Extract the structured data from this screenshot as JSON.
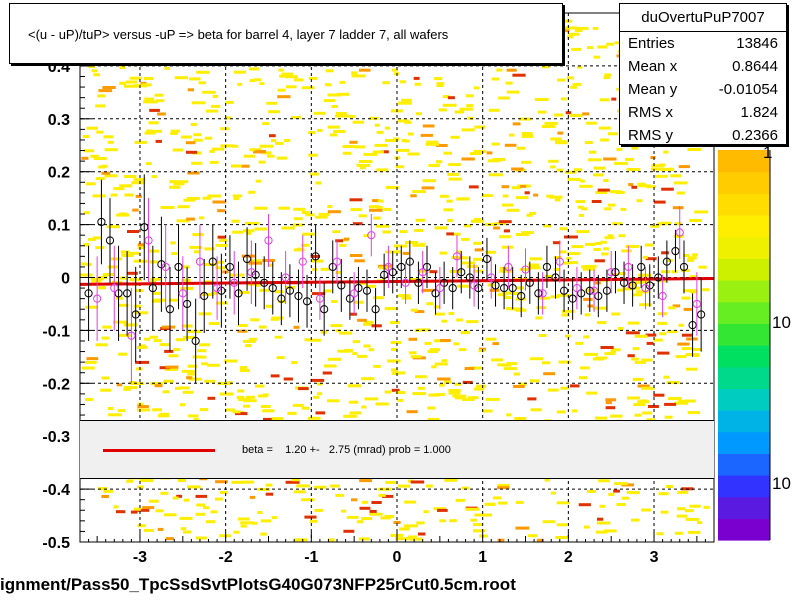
{
  "title": "<(u - uP)/tuP> versus  -uP => beta for barrel 4, layer 7 ladder 7, all wafers",
  "stats": {
    "name": "duOvertuPuP7007",
    "rows": [
      {
        "key": "Entries",
        "value": "13846"
      },
      {
        "key": "Mean x",
        "value": "0.8644"
      },
      {
        "key": "Mean y",
        "value": "-0.01054"
      },
      {
        "key": "RMS x",
        "value": "1.824"
      },
      {
        "key": "RMS y",
        "value": "0.2366"
      }
    ]
  },
  "legend": {
    "text": "beta =    1.20 +-   2.75 (mrad) prob = 1.000"
  },
  "footer": "ignment/Pass50_TpcSsdSvtPlotsG40G073NFP25rCut0.5cm.root",
  "colorbar": {
    "labels": [
      "1",
      "10",
      "10"
    ]
  },
  "colors": {
    "fit": "#e00000",
    "hist_low": "#ffff00",
    "hist_high": "#ff9900"
  },
  "chart_data": {
    "type": "scatter",
    "xlim": [
      -3.7,
      3.7
    ],
    "ylim": [
      -0.5,
      0.5
    ],
    "xticks": [
      -3,
      -2,
      -1,
      0,
      1,
      2,
      3
    ],
    "yticks": [
      -0.5,
      -0.4,
      -0.3,
      -0.2,
      -0.1,
      0,
      0.1,
      0.2,
      0.3,
      0.4
    ],
    "ytick_labels": [
      "-0.5",
      "-0.4",
      "-0.3",
      "-0.2",
      "-0.1",
      "0",
      "0.1",
      "0.2",
      "0.3",
      "0.4"
    ],
    "grid": true,
    "fit_line": {
      "x": [
        -3.7,
        3.7
      ],
      "y": [
        -0.013,
        -0.002
      ]
    },
    "series": [
      {
        "marker": "black-open-circle",
        "x": [
          -3.6,
          -3.45,
          -3.35,
          -3.25,
          -3.15,
          -3.05,
          -2.95,
          -2.85,
          -2.75,
          -2.65,
          -2.55,
          -2.45,
          -2.35,
          -2.25,
          -2.15,
          -2.05,
          -1.95,
          -1.85,
          -1.75,
          -1.65,
          -1.55,
          -1.45,
          -1.35,
          -1.25,
          -1.15,
          -1.05,
          -0.95,
          -0.85,
          -0.75,
          -0.65,
          -0.55,
          -0.45,
          -0.35,
          -0.25,
          -0.15,
          -0.05,
          0.05,
          0.15,
          0.25,
          0.35,
          0.45,
          0.55,
          0.65,
          0.75,
          0.85,
          0.95,
          1.05,
          1.15,
          1.25,
          1.35,
          1.45,
          1.55,
          1.65,
          1.75,
          1.85,
          1.95,
          2.05,
          2.15,
          2.25,
          2.35,
          2.45,
          2.55,
          2.65,
          2.75,
          2.85,
          2.95,
          3.05,
          3.15,
          3.25,
          3.35,
          3.45,
          3.55
        ],
        "y": [
          -0.03,
          0.105,
          0.07,
          -0.03,
          -0.03,
          -0.07,
          0.095,
          -0.02,
          0.025,
          -0.06,
          0.02,
          -0.05,
          -0.12,
          -0.035,
          0.03,
          -0.025,
          0.02,
          -0.03,
          0.035,
          0.005,
          -0.01,
          -0.02,
          -0.04,
          -0.025,
          -0.035,
          -0.045,
          0.04,
          -0.06,
          0.02,
          -0.015,
          -0.04,
          -0.02,
          -0.025,
          -0.06,
          0.005,
          0.01,
          0.02,
          0.03,
          -0.01,
          0.02,
          -0.03,
          -0.01,
          -0.02,
          0.01,
          0.0,
          -0.02,
          0.035,
          -0.015,
          -0.02,
          -0.02,
          -0.035,
          -0.01,
          -0.03,
          0.02,
          0.0,
          -0.025,
          -0.04,
          -0.03,
          -0.025,
          -0.035,
          -0.025,
          0.01,
          -0.01,
          -0.015,
          0.02,
          -0.015,
          0.0,
          0.03,
          0.05,
          0.02,
          -0.09,
          -0.07
        ],
        "err": [
          0.09,
          0.08,
          0.08,
          0.09,
          0.08,
          0.09,
          0.1,
          0.08,
          0.09,
          0.08,
          0.08,
          0.07,
          0.08,
          0.07,
          0.07,
          0.07,
          0.06,
          0.06,
          0.06,
          0.06,
          0.05,
          0.05,
          0.05,
          0.05,
          0.05,
          0.05,
          0.06,
          0.05,
          0.05,
          0.05,
          0.04,
          0.04,
          0.04,
          0.04,
          0.04,
          0.04,
          0.04,
          0.04,
          0.04,
          0.04,
          0.04,
          0.04,
          0.04,
          0.04,
          0.04,
          0.04,
          0.04,
          0.04,
          0.04,
          0.04,
          0.04,
          0.04,
          0.04,
          0.04,
          0.04,
          0.04,
          0.04,
          0.04,
          0.04,
          0.04,
          0.04,
          0.04,
          0.04,
          0.04,
          0.04,
          0.04,
          0.04,
          0.04,
          0.04,
          0.05,
          0.06,
          0.07
        ]
      },
      {
        "marker": "magenta-open-circle",
        "x": [
          -3.5,
          -3.3,
          -3.1,
          -2.9,
          -2.7,
          -2.5,
          -2.3,
          -2.1,
          -1.9,
          -1.7,
          -1.5,
          -1.3,
          -1.1,
          -0.9,
          -0.7,
          -0.5,
          -0.3,
          -0.1,
          0.1,
          0.3,
          0.5,
          0.7,
          0.9,
          1.1,
          1.3,
          1.5,
          1.7,
          1.9,
          2.1,
          2.3,
          2.5,
          2.7,
          2.9,
          3.1,
          3.3,
          3.5
        ],
        "y": [
          -0.04,
          -0.02,
          -0.11,
          0.07,
          0.02,
          -0.03,
          0.03,
          -0.02,
          -0.01,
          0.01,
          0.07,
          0.0,
          0.03,
          -0.04,
          0.03,
          -0.03,
          0.08,
          0.02,
          -0.01,
          0.01,
          -0.02,
          0.04,
          -0.015,
          0.0,
          0.02,
          0.015,
          -0.03,
          0.03,
          -0.02,
          -0.025,
          0.01,
          0.02,
          -0.02,
          -0.035,
          0.085,
          -0.05
        ],
        "err": [
          0.08,
          0.08,
          0.09,
          0.08,
          0.08,
          0.07,
          0.07,
          0.06,
          0.06,
          0.06,
          0.05,
          0.05,
          0.05,
          0.04,
          0.04,
          0.04,
          0.04,
          0.04,
          0.04,
          0.04,
          0.04,
          0.04,
          0.04,
          0.04,
          0.04,
          0.04,
          0.04,
          0.04,
          0.04,
          0.04,
          0.04,
          0.04,
          0.04,
          0.04,
          0.05,
          0.06
        ]
      }
    ]
  }
}
